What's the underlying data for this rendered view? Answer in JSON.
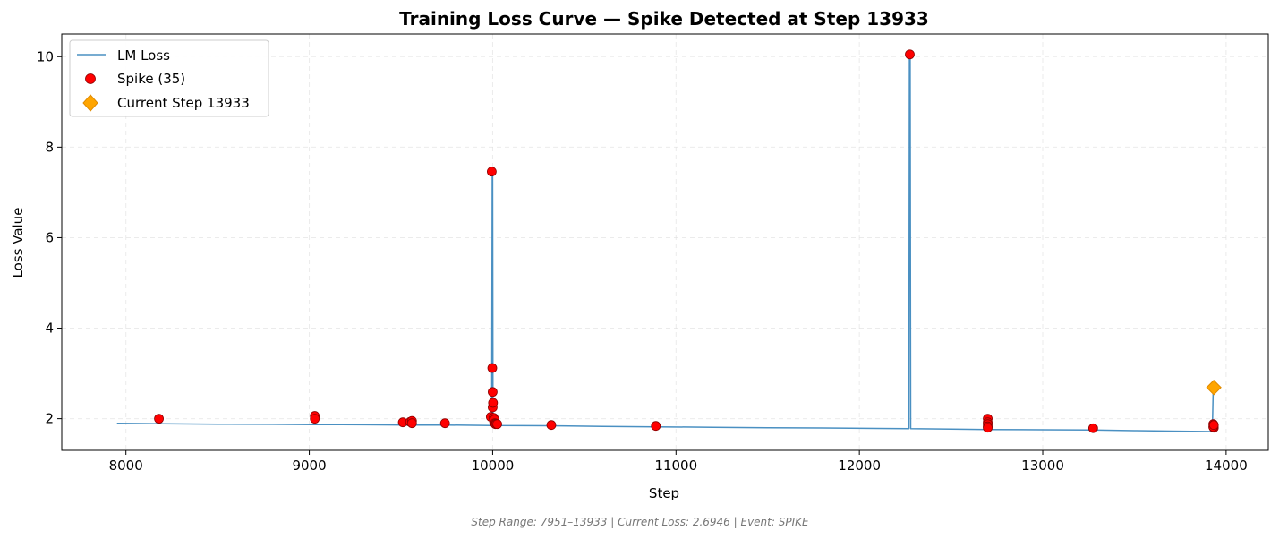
{
  "chart_data": {
    "type": "line",
    "title": "Training Loss Curve — Spike Detected at Step 13933",
    "xlabel": "Step",
    "ylabel": "Loss Value",
    "xlim": [
      7650,
      14230
    ],
    "ylim": [
      1.3,
      10.5
    ],
    "x_ticks": [
      8000,
      9000,
      10000,
      11000,
      12000,
      13000,
      14000
    ],
    "y_ticks": [
      2,
      4,
      6,
      8,
      10
    ],
    "grid": true,
    "legend_position": "top-left",
    "colors": {
      "line": "#4a90c2",
      "spike": "#ff0000",
      "spike_edge": "#8b0000",
      "current": "#ffa500",
      "current_edge": "#e08a00",
      "grid": "#dddddd"
    },
    "series": [
      {
        "name": "LM Loss",
        "kind": "line",
        "points": [
          [
            7951,
            1.9
          ],
          [
            8200,
            1.89
          ],
          [
            8500,
            1.88
          ],
          [
            8800,
            1.875
          ],
          [
            9030,
            1.87
          ],
          [
            9300,
            1.865
          ],
          [
            9560,
            1.86
          ],
          [
            9740,
            1.86
          ],
          [
            9995,
            1.85
          ],
          [
            9998,
            7.46
          ],
          [
            10000,
            7.46
          ],
          [
            10002,
            1.86
          ],
          [
            10020,
            1.85
          ],
          [
            10300,
            1.845
          ],
          [
            10600,
            1.83
          ],
          [
            10890,
            1.82
          ],
          [
            11200,
            1.81
          ],
          [
            11500,
            1.8
          ],
          [
            11800,
            1.795
          ],
          [
            12100,
            1.785
          ],
          [
            12270,
            1.78
          ],
          [
            12273,
            10.05
          ],
          [
            12277,
            10.05
          ],
          [
            12280,
            1.78
          ],
          [
            12500,
            1.77
          ],
          [
            12700,
            1.76
          ],
          [
            13000,
            1.755
          ],
          [
            13275,
            1.75
          ],
          [
            13500,
            1.735
          ],
          [
            13700,
            1.725
          ],
          [
            13925,
            1.715
          ],
          [
            13930,
            2.69
          ],
          [
            13933,
            2.69
          ]
        ]
      },
      {
        "name": "Spike (35)",
        "kind": "scatter",
        "points": [
          [
            8180,
            2.0
          ],
          [
            9030,
            2.06
          ],
          [
            9030,
            2.0
          ],
          [
            9510,
            1.92
          ],
          [
            9550,
            1.93
          ],
          [
            9560,
            1.95
          ],
          [
            9560,
            1.9
          ],
          [
            9740,
            1.9
          ],
          [
            9990,
            2.04
          ],
          [
            9995,
            7.46
          ],
          [
            9998,
            3.12
          ],
          [
            10000,
            2.25
          ],
          [
            10000,
            2.59
          ],
          [
            10002,
            2.35
          ],
          [
            10005,
            2.02
          ],
          [
            10008,
            1.93
          ],
          [
            10010,
            1.98
          ],
          [
            10012,
            1.9
          ],
          [
            10015,
            1.88
          ],
          [
            10020,
            1.89
          ],
          [
            10025,
            1.88
          ],
          [
            10320,
            1.86
          ],
          [
            10890,
            1.84
          ],
          [
            12275,
            10.05
          ],
          [
            12700,
            2.0
          ],
          [
            12700,
            1.92
          ],
          [
            12700,
            1.88
          ],
          [
            12700,
            1.83
          ],
          [
            12700,
            1.8
          ],
          [
            13275,
            1.79
          ],
          [
            13930,
            1.88
          ],
          [
            13932,
            1.85
          ],
          [
            13933,
            1.8
          ],
          [
            13930,
            1.82
          ],
          [
            13933,
            1.86
          ]
        ]
      },
      {
        "name": "Current Step 13933",
        "kind": "marker",
        "points": [
          [
            13933,
            2.69
          ]
        ]
      }
    ],
    "footer": "Step Range: 7951–13933 | Current Loss: 2.6946 | Event: SPIKE"
  }
}
